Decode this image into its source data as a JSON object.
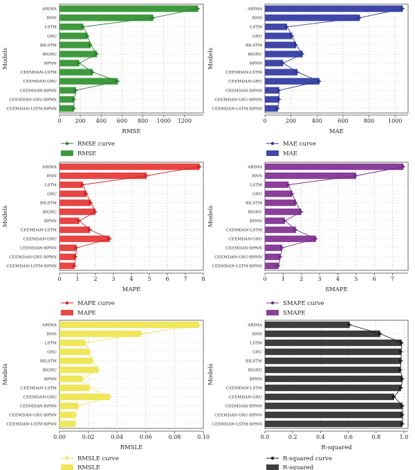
{
  "models": [
    "ARIMA",
    "RNN",
    "LSTM",
    "GRU",
    "BILSTM",
    "BIGRU",
    "BPNN",
    "CEEMDAN-LSTM",
    "CEEMDAN-GRU",
    "CEEMDAN-BPNN",
    "CEEMDAN-GRU-BPNN",
    "CEEMDAN-LSTM-BPNN"
  ],
  "chart_data": [
    {
      "type": "bar",
      "orientation": "horizontal",
      "ylabel": "Models",
      "xlabel": "RMSE",
      "xlim": [
        0,
        1380
      ],
      "xticks": [
        0,
        200,
        400,
        600,
        800,
        1000,
        1200
      ],
      "tick_decimals": 0,
      "color": "#3f9a3f",
      "line_color": "#2e7d2e",
      "grid": true,
      "legend_position": "below",
      "legend": [
        "RMSE curve",
        "RMSE"
      ],
      "values": [
        1330,
        900,
        230,
        270,
        300,
        360,
        190,
        320,
        560,
        160,
        140,
        140
      ]
    },
    {
      "type": "bar",
      "orientation": "horizontal",
      "ylabel": "Models",
      "xlabel": "MAE",
      "xlim": [
        0,
        1100
      ],
      "xticks": [
        0,
        200,
        400,
        600,
        800,
        1000
      ],
      "tick_decimals": 0,
      "color": "#3f48a8",
      "line_color": "#2d3590",
      "grid": true,
      "legend_position": "below",
      "legend": [
        "MAE curve",
        "MAE"
      ],
      "values": [
        1060,
        730,
        170,
        210,
        240,
        290,
        140,
        250,
        420,
        110,
        110,
        100
      ]
    },
    {
      "type": "bar",
      "orientation": "horizontal",
      "ylabel": "Models",
      "xlabel": "MAPE",
      "xlim": [
        0,
        8
      ],
      "xticks": [
        0,
        1,
        2,
        3,
        4,
        5,
        6,
        7,
        8
      ],
      "tick_decimals": 0,
      "color": "#e84545",
      "line_color": "#d02020",
      "grid": true,
      "legend_position": "below",
      "legend": [
        "MAPE curve",
        "MAPE"
      ],
      "values": [
        7.8,
        4.85,
        1.3,
        1.5,
        1.75,
        2.0,
        1.1,
        1.7,
        2.8,
        0.95,
        0.9,
        0.85
      ]
    },
    {
      "type": "bar",
      "orientation": "horizontal",
      "ylabel": "Models",
      "xlabel": "SMAPE",
      "xlim": [
        0,
        7.85
      ],
      "xticks": [
        0,
        1,
        2,
        3,
        4,
        5,
        6,
        7
      ],
      "tick_decimals": 0,
      "color": "#8a3f9a",
      "line_color": "#6e2a80",
      "grid": true,
      "legend_position": "below",
      "legend": [
        "SMAPE curve",
        "SMAPE"
      ],
      "values": [
        7.6,
        5.0,
        1.3,
        1.5,
        1.7,
        2.0,
        1.1,
        1.7,
        2.8,
        0.95,
        0.85,
        0.75
      ]
    },
    {
      "type": "bar",
      "orientation": "horizontal",
      "ylabel": "Models",
      "xlabel": "RMSLE",
      "xlim": [
        0,
        0.1
      ],
      "xticks": [
        0.0,
        0.02,
        0.04,
        0.06,
        0.08,
        0.1
      ],
      "tick_decimals": 2,
      "color": "#efe65a",
      "line_color": "#efe65a",
      "grid": true,
      "legend_position": "below",
      "legend": [
        "RMSLE curve",
        "RMSLE"
      ],
      "values": [
        0.097,
        0.057,
        0.018,
        0.021,
        0.023,
        0.027,
        0.016,
        0.021,
        0.035,
        0.013,
        0.011,
        0.011
      ]
    },
    {
      "type": "bar",
      "orientation": "horizontal",
      "ylabel": "Models",
      "xlabel": "R-squared",
      "xlim": [
        0,
        1.03
      ],
      "xticks": [
        0.0,
        0.2,
        0.4,
        0.6,
        0.8,
        1.0
      ],
      "tick_decimals": 1,
      "color": "#3d3d3d",
      "line_color": "#1a1a1a",
      "grid": true,
      "legend_position": "below",
      "legend": [
        "R-squared curve",
        "R-squared"
      ],
      "values": [
        0.61,
        0.83,
        0.985,
        0.98,
        0.98,
        0.975,
        0.99,
        0.98,
        0.93,
        0.99,
        0.99,
        0.99
      ]
    }
  ]
}
